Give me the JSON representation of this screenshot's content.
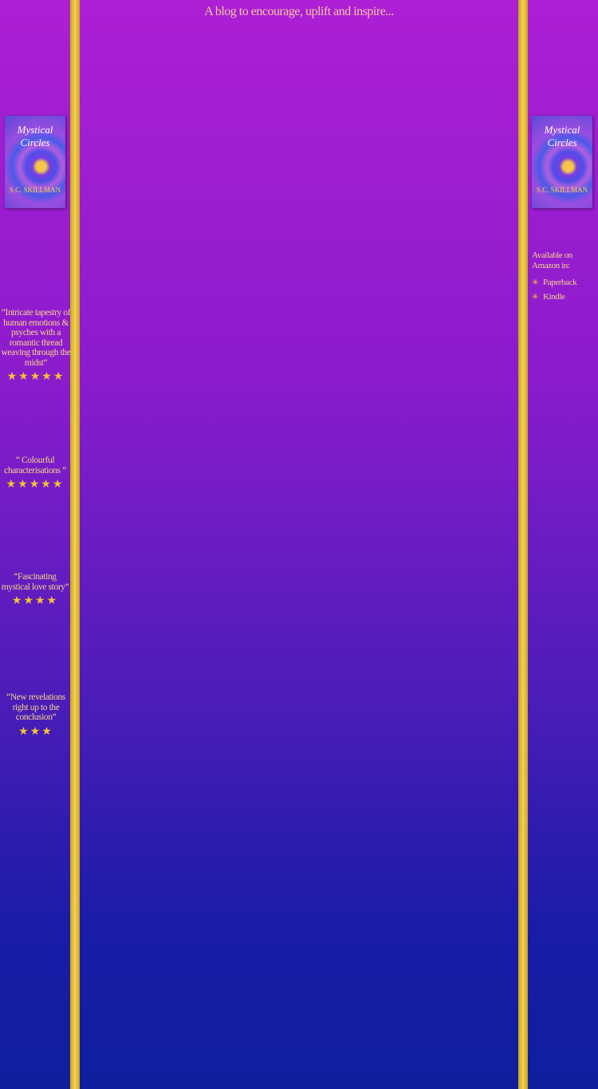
{
  "tagline": "A blog to encourage, uplift and inspire...",
  "book": {
    "title_line1": "Mystical",
    "title_line2": "Circles",
    "author": "S.C. SKILLMAN"
  },
  "reviews": [
    {
      "quote": "“Intricate tapestry of human emotions & psyches with a romantic thread weaving through the midst”",
      "stars": 5,
      "stars_text": "★★★★★"
    },
    {
      "quote": "“ Colourful characterisations ”",
      "stars": 5,
      "stars_text": "★★★★★"
    },
    {
      "quote": "“Fascinating mystical love story”",
      "stars": 4,
      "stars_text": "★★★★"
    },
    {
      "quote": "“New revelations right up to the conclusion”",
      "stars": 3,
      "stars_text": "★★★"
    }
  ],
  "amazon": {
    "heading": "Available on Amazon in:",
    "links": [
      "Paperback",
      "Kindle"
    ],
    "bullet": "✳"
  },
  "colors": {
    "gold": "#f3d34a",
    "top": "#ad1fd4",
    "bottom": "#0f1e9e"
  }
}
